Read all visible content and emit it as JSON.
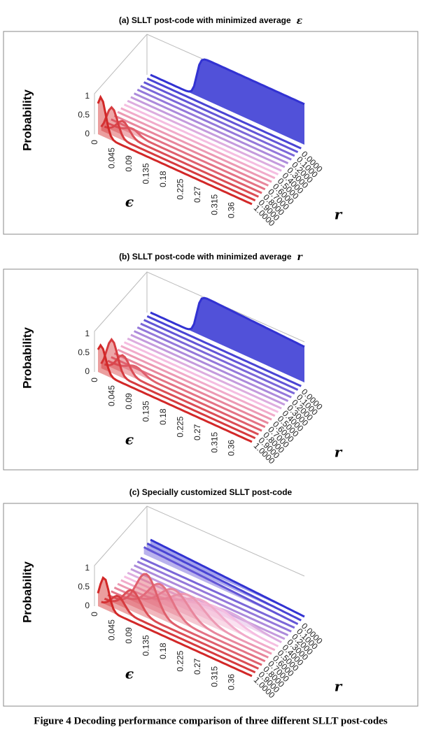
{
  "panels": [
    {
      "title": "(a)   SLLT post-code with minimized average",
      "title_symbol": "ε",
      "z_label": "Probability",
      "z_ticks": [
        "0",
        "0.5",
        "1"
      ],
      "x_label": "ϵ",
      "x_ticks": [
        "0",
        "0.045",
        "0.09",
        "0.135",
        "0.18",
        "0.225",
        "0.27",
        "0.315",
        "0.36"
      ],
      "y_label": "r",
      "y_ticks": [
        "1.0000",
        "0.9000",
        "0.8000",
        "0.7000",
        "0.6000",
        "0.5000",
        "0.4000",
        "0.3000",
        "0.2000",
        "0.1000",
        "0.0000"
      ]
    },
    {
      "title": "(b)   SLLT post-code with minimized average",
      "title_symbol": "r",
      "z_label": "Probability",
      "z_ticks": [
        "0",
        "0.5",
        "1"
      ],
      "x_label": "ϵ",
      "x_ticks": [
        "0",
        "0.045",
        "0.09",
        "0.135",
        "0.18",
        "0.225",
        "0.27",
        "0.315",
        "0.36"
      ],
      "y_label": "r",
      "y_ticks": [
        "1.0000",
        "0.9000",
        "0.8000",
        "0.7000",
        "0.6000",
        "0.5000",
        "0.4000",
        "0.3000",
        "0.2000",
        "0.1000",
        "0.0000"
      ]
    },
    {
      "title": "(c)   Specially customized SLLT post-code",
      "z_label": "Probability",
      "z_ticks": [
        "0",
        "0.5",
        "1"
      ],
      "x_label": "ϵ",
      "x_ticks": [
        "0",
        "0.045",
        "0.09",
        "0.135",
        "0.18",
        "0.225",
        "0.27",
        "0.315",
        "0.36"
      ],
      "y_label": "r",
      "y_ticks": [
        "1.0000",
        "0.9000",
        "0.8000",
        "0.7000",
        "0.6000",
        "0.5000",
        "0.4000",
        "0.3000",
        "0.2000",
        "0.1000",
        "0.0000"
      ]
    }
  ],
  "caption": "Figure 4 Decoding performance comparison of three different SLLT post-codes"
}
